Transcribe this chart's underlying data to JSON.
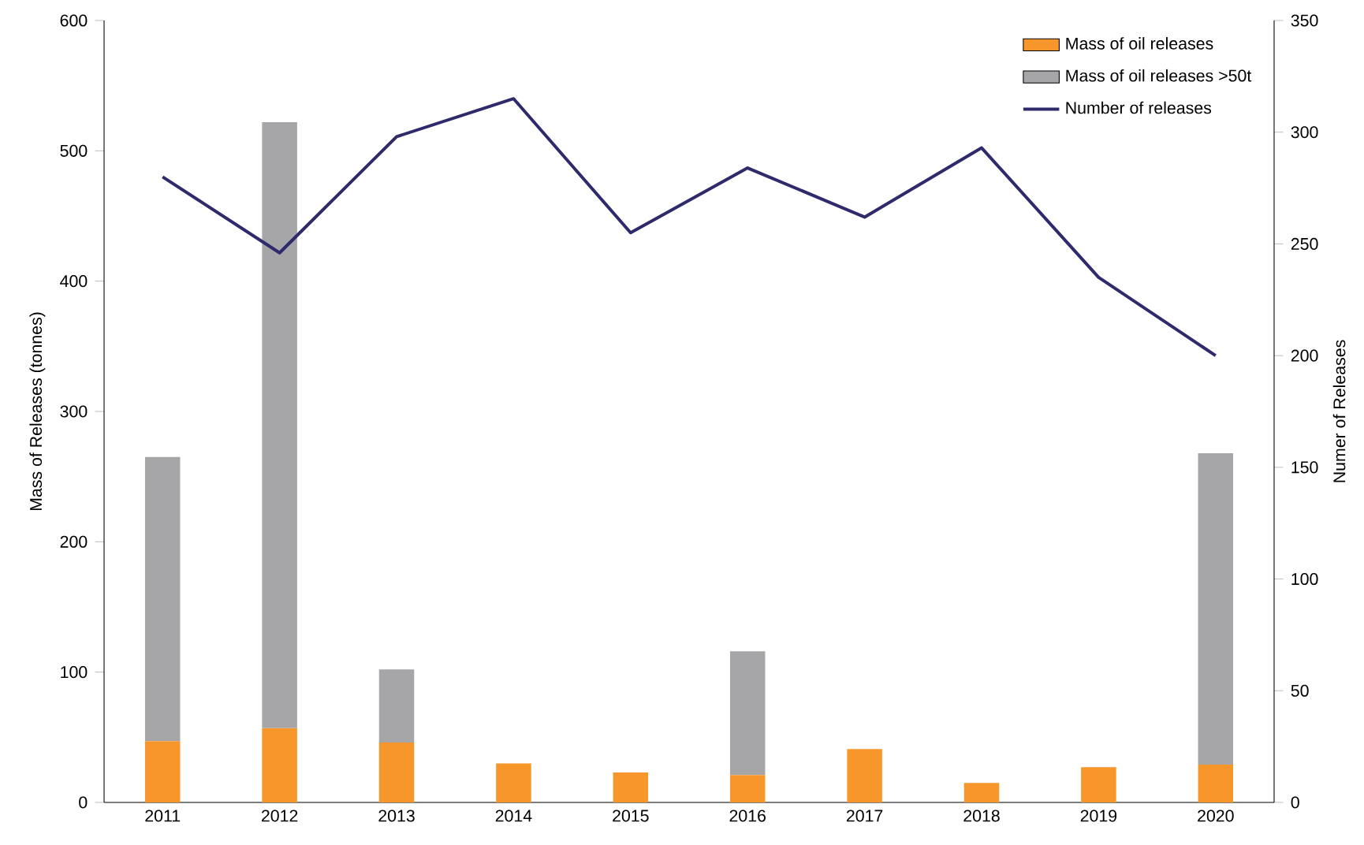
{
  "chart_data": {
    "type": "bar",
    "stacked": true,
    "categories": [
      "2011",
      "2012",
      "2013",
      "2014",
      "2015",
      "2016",
      "2017",
      "2018",
      "2019",
      "2020"
    ],
    "series": [
      {
        "name": "Mass of oil releases",
        "color": "#f7962b",
        "values": [
          47,
          57,
          46,
          30,
          23,
          21,
          41,
          15,
          27,
          29
        ]
      },
      {
        "name": "Mass of oil releases >50t",
        "color": "#a6a6a9",
        "values": [
          218,
          465,
          56,
          0,
          0,
          95,
          0,
          0,
          0,
          239
        ]
      },
      {
        "name": "Number of releases",
        "type": "line",
        "axis": "y2",
        "color": "#2e2a6b",
        "values": [
          280,
          246,
          298,
          315,
          255,
          284,
          262,
          293,
          235,
          200
        ]
      }
    ],
    "ylabel": "Mass of Releases (tonnes)",
    "y2label": "Numer of Releases",
    "ylim": [
      0,
      600
    ],
    "yticks": [
      0,
      100,
      200,
      300,
      400,
      500,
      600
    ],
    "y2lim": [
      0,
      350
    ],
    "y2ticks": [
      0,
      50,
      100,
      150,
      200,
      250,
      300,
      350
    ],
    "legend": "top right",
    "marker": "none",
    "line_style": "solid"
  }
}
